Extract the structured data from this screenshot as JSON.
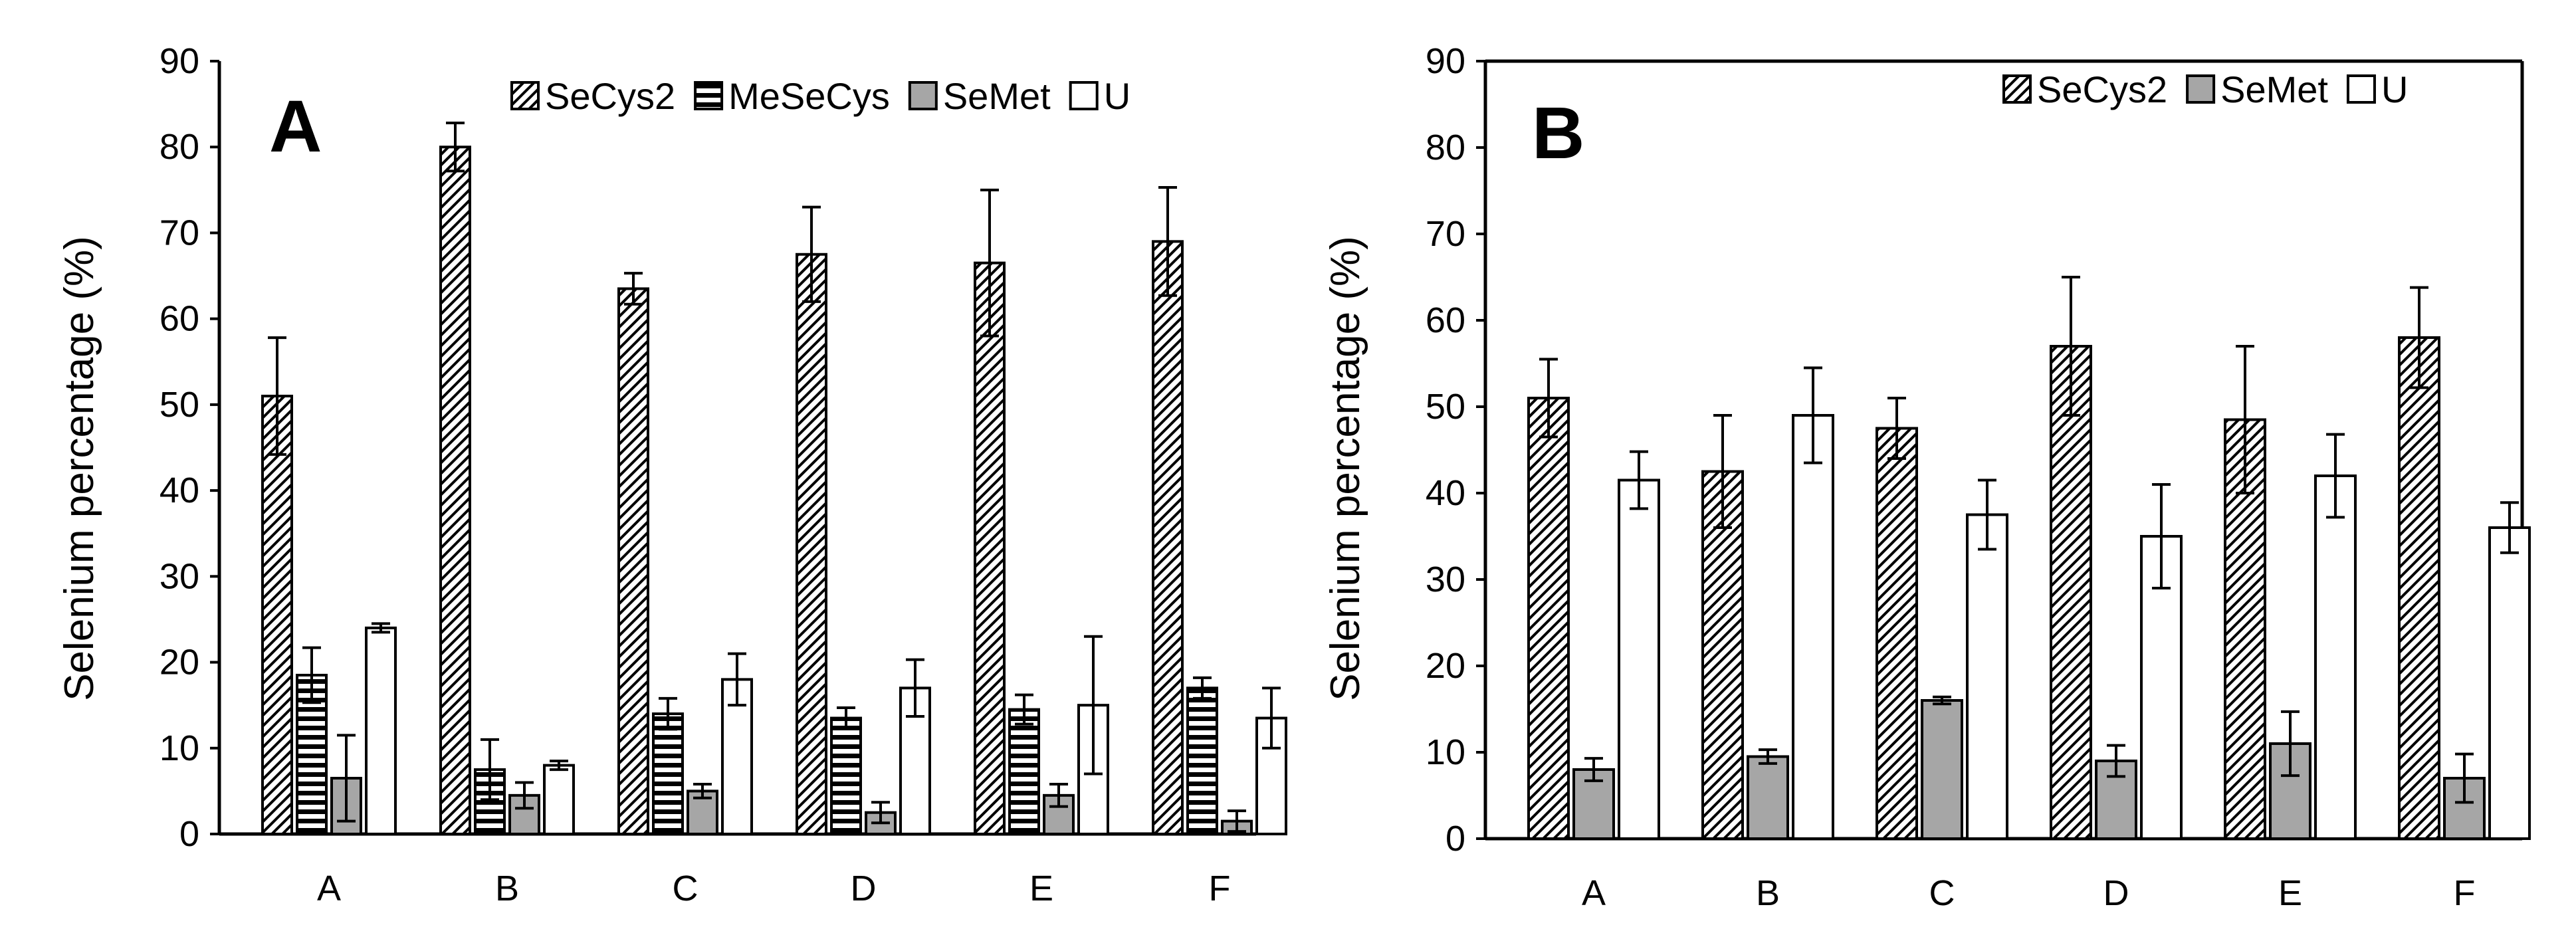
{
  "chart_data": [
    {
      "type": "bar",
      "panel_label": "A",
      "ylabel": "Selenium percentage (%)",
      "xlabel": "",
      "ylim": [
        0,
        90
      ],
      "yticks": [
        0,
        10,
        20,
        30,
        40,
        50,
        60,
        70,
        80,
        90
      ],
      "categories": [
        "A",
        "B",
        "C",
        "D",
        "E",
        "F"
      ],
      "legend_position": "top-right",
      "series": [
        {
          "name": "SeCys2",
          "pattern": "diagonal",
          "values": [
            51,
            80,
            63.5,
            67.5,
            66.5,
            69
          ],
          "errors": [
            6.8,
            2.8,
            1.8,
            5.5,
            8.5,
            6.3
          ]
        },
        {
          "name": "MeSeCys",
          "pattern": "horizontal",
          "values": [
            18.5,
            7.5,
            14,
            13.5,
            14.5,
            17
          ],
          "errors": [
            3.2,
            3.5,
            1.8,
            1.2,
            1.7,
            1.2
          ]
        },
        {
          "name": "SeMet",
          "pattern": "gray",
          "values": [
            6.5,
            4.5,
            5,
            2.5,
            4.5,
            1.5
          ],
          "errors": [
            5,
            1.5,
            0.8,
            1.2,
            1.3,
            1.2
          ]
        },
        {
          "name": "U",
          "pattern": "white",
          "values": [
            24,
            8,
            18,
            17,
            15,
            13.5
          ],
          "errors": [
            0.5,
            0.5,
            3,
            3.3,
            8,
            3.5
          ]
        }
      ]
    },
    {
      "type": "bar",
      "panel_label": "B",
      "ylabel": "Selenium percentage (%)",
      "xlabel": "",
      "ylim": [
        0,
        90
      ],
      "yticks": [
        0,
        10,
        20,
        30,
        40,
        50,
        60,
        70,
        80,
        90
      ],
      "categories": [
        "A",
        "B",
        "C",
        "D",
        "E",
        "F"
      ],
      "legend_position": "top-right",
      "series": [
        {
          "name": "SeCys2",
          "pattern": "diagonal",
          "values": [
            51,
            42.5,
            47.5,
            57,
            48.5,
            58
          ],
          "errors": [
            4.5,
            6.5,
            3.5,
            8,
            8.5,
            5.8
          ]
        },
        {
          "name": "SeMet",
          "pattern": "gray",
          "values": [
            8,
            9.5,
            16,
            9,
            11,
            7
          ],
          "errors": [
            1.3,
            0.8,
            0.4,
            1.8,
            3.7,
            2.8
          ]
        },
        {
          "name": "U",
          "pattern": "white",
          "values": [
            41.5,
            49,
            37.5,
            35,
            42,
            36
          ],
          "errors": [
            3.3,
            5.5,
            4,
            6,
            4.8,
            2.9
          ]
        }
      ]
    }
  ],
  "colors": {
    "axis": "#000000",
    "gray_fill": "#a6a6a6",
    "white_fill": "#ffffff",
    "hatch": "#000000"
  }
}
